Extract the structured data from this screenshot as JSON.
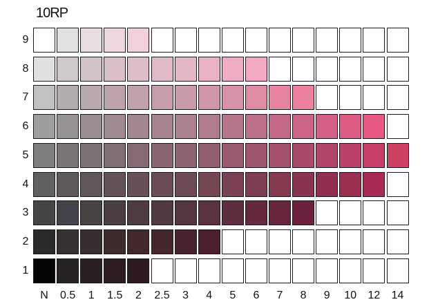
{
  "hue_label": "10RP",
  "chroma_labels": [
    "N",
    "0.5",
    "1",
    "1.5",
    "2",
    "2.5",
    "3",
    "4",
    "5",
    "6",
    "7",
    "8",
    "9",
    "10",
    "12",
    "14"
  ],
  "value_labels": [
    "9",
    "8",
    "7",
    "6",
    "5",
    "4",
    "3",
    "2",
    "1"
  ],
  "rows": [
    {
      "value": "9",
      "colors": [
        "#ffffff",
        "#e2e0e1",
        "#eadde1",
        "#eed7dd",
        "#f0d0db",
        null,
        null,
        null,
        null,
        null,
        null,
        null,
        null,
        null,
        null,
        null
      ]
    },
    {
      "value": "8",
      "colors": [
        "#e0e0e0",
        "#cfc9cb",
        "#d1c3c7",
        "#d9c0c7",
        "#ddbdc6",
        "#e0bac5",
        "#e4b7c5",
        "#eab3c5",
        "#efadc3",
        "#f3a9bf",
        null,
        null,
        null,
        null,
        null,
        null
      ]
    },
    {
      "value": "7",
      "colors": [
        "#c1c1c1",
        "#b1adae",
        "#b9a8ad",
        "#bda4ab",
        "#c1a2ab",
        "#c59ea9",
        "#c99ba8",
        "#cf96a8",
        "#d692a6",
        "#de8ca4",
        "#e585a0",
        "#ec809d",
        null,
        null,
        null,
        null
      ]
    },
    {
      "value": "6",
      "colors": [
        "#9e9e9e",
        "#979394",
        "#9a8d91",
        "#9e8a90",
        "#a2878f",
        "#a6848f",
        "#aa818d",
        "#b07c8c",
        "#b6778b",
        "#bc7089",
        "#c46987",
        "#cb6485",
        "#d35f84",
        "#db5b83",
        "#e65983",
        null
      ]
    },
    {
      "value": "5",
      "colors": [
        "#7f7f7f",
        "#7a7677",
        "#7d7175",
        "#806e73",
        "#856b73",
        "#896871",
        "#8d6571",
        "#936071",
        "#9a5a6f",
        "#9f566d",
        "#a6506c",
        "#ab4b6a",
        "#b24769",
        "#ba4268",
        "#c73e66",
        "#d04062"
      ]
    },
    {
      "value": "4",
      "colors": [
        "#606060",
        "#5e5a5b",
        "#615658",
        "#645356",
        "#685156",
        "#6b4e55",
        "#6e4b54",
        "#744753",
        "#7a4252",
        "#7e3e51",
        "#853a50",
        "#8a344f",
        "#91304e",
        "#993050",
        "#a92b55",
        null
      ]
    },
    {
      "value": "3",
      "colors": [
        "#454545",
        "#46424b",
        "#494243",
        "#4b3f41",
        "#4e3c40",
        "#513a3f",
        "#54363f",
        "#5a333f",
        "#5f2f3e",
        "#632a3e",
        "#68253e",
        "#6b203d",
        null,
        null,
        null,
        null
      ]
    },
    {
      "value": "2",
      "colors": [
        "#2a2a2a",
        "#353130",
        "#392e2f",
        "#3d2b2e",
        "#40282c",
        "#44262d",
        "#48232d",
        "#4c1f2d",
        null,
        null,
        null,
        null,
        null,
        null,
        null,
        null
      ]
    },
    {
      "value": "1",
      "colors": [
        "#050505",
        "#272323",
        "#2b1f21",
        "#2d1c20",
        "#2f1a1f",
        null,
        null,
        null,
        null,
        null,
        null,
        null,
        null,
        null,
        null,
        null
      ]
    }
  ]
}
